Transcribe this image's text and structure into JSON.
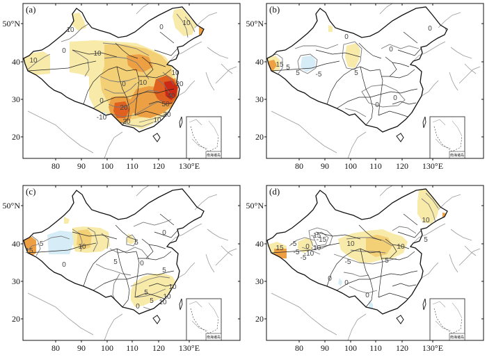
{
  "x_ticks": [
    "80",
    "90",
    "100",
    "110",
    "120",
    "130°E"
  ],
  "y_ticks": [
    "20",
    "30",
    "40",
    "50°N"
  ],
  "inset_label": "南海诸岛",
  "colors": {
    "light_yellow": "#f8eaa8",
    "yellow_orange": "#f3cf76",
    "orange": "#ec9f43",
    "dark_orange": "#e06020",
    "red": "#cc2a14",
    "light_blue": "#d6ecf6",
    "blue": "#7fc2e6",
    "border": "#111111",
    "coast": "#9a9a9a"
  },
  "panels": [
    {
      "label": "(a)",
      "contour_labels": [
        "10",
        "0",
        "10",
        "10",
        "0",
        "10",
        "-10",
        "0",
        "20",
        "30",
        "50",
        "40",
        "20",
        "10",
        "0",
        "-10",
        "10",
        "20"
      ]
    },
    {
      "label": "(b)",
      "contour_labels": [
        "0",
        "5",
        "0",
        "5",
        "-5",
        "5",
        "0",
        "0",
        "0",
        "15"
      ]
    },
    {
      "label": "(c)",
      "contour_labels": [
        "0",
        "5",
        "-5",
        "10",
        "15",
        "0",
        "5",
        "10",
        "0",
        "5",
        "10",
        "5",
        "0",
        "10",
        "5"
      ]
    },
    {
      "label": "(d)",
      "contour_labels": [
        "0",
        "-5",
        "-10",
        "-15",
        "-5",
        "-15",
        "-10",
        "-5",
        "0",
        "10",
        "10",
        "5",
        "0",
        "-5",
        "0",
        "10",
        "5",
        "15"
      ]
    }
  ]
}
